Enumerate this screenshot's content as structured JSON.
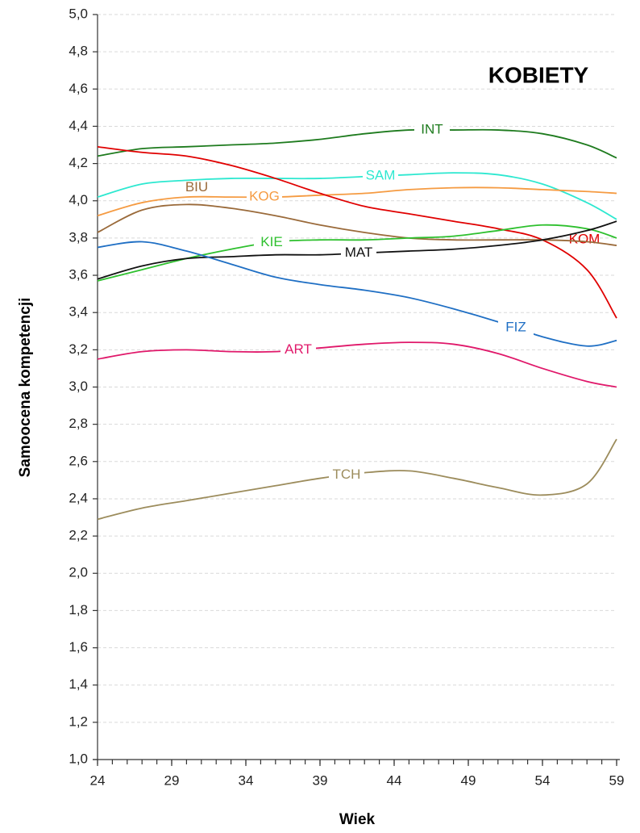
{
  "chart_data": {
    "type": "line",
    "annotation": "KOBIETY",
    "xlabel": "Wiek",
    "ylabel": "Samoocena kompetencji",
    "x": [
      24,
      27,
      30,
      33,
      36,
      39,
      42,
      45,
      48,
      51,
      54,
      57,
      59
    ],
    "xlim": [
      24,
      59
    ],
    "xticks": [
      24,
      29,
      34,
      39,
      44,
      49,
      54,
      59
    ],
    "x_minor_step": 1,
    "ylim": [
      1,
      5
    ],
    "yticks": [
      {
        "value": 1,
        "label": "1,0"
      },
      {
        "value": 1.2,
        "label": "1,2"
      },
      {
        "value": 1.4,
        "label": "1,4"
      },
      {
        "value": 1.6,
        "label": "1,6"
      },
      {
        "value": 1.8,
        "label": "1,8"
      },
      {
        "value": 2,
        "label": "2,0"
      },
      {
        "value": 2.2,
        "label": "2,2"
      },
      {
        "value": 2.4,
        "label": "2,4"
      },
      {
        "value": 2.6,
        "label": "2,6"
      },
      {
        "value": 2.8,
        "label": "2,8"
      },
      {
        "value": 3,
        "label": "3,0"
      },
      {
        "value": 3.2,
        "label": "3,2"
      },
      {
        "value": 3.4,
        "label": "3,4"
      },
      {
        "value": 3.6,
        "label": "3,6"
      },
      {
        "value": 3.8,
        "label": "3,8"
      },
      {
        "value": 4,
        "label": "4,0"
      },
      {
        "value": 4.2,
        "label": "4,2"
      },
      {
        "value": 4.4,
        "label": "4,4"
      },
      {
        "value": 4.6,
        "label": "4,6"
      },
      {
        "value": 4.8,
        "label": "4,8"
      },
      {
        "value": 5,
        "label": "5,0"
      }
    ],
    "grid": true,
    "series": [
      {
        "name": "INT",
        "color": "#1e7b1e",
        "values": [
          4.24,
          4.28,
          4.29,
          4.3,
          4.31,
          4.33,
          4.36,
          4.38,
          4.38,
          4.38,
          4.36,
          4.3,
          4.23
        ]
      },
      {
        "name": "SAM",
        "color": "#2de8d0",
        "values": [
          4.02,
          4.09,
          4.11,
          4.12,
          4.12,
          4.12,
          4.13,
          4.14,
          4.15,
          4.14,
          4.09,
          3.99,
          3.9
        ]
      },
      {
        "name": "KOG",
        "color": "#f59b42",
        "values": [
          3.92,
          3.99,
          4.02,
          4.02,
          4.02,
          4.03,
          4.04,
          4.06,
          4.07,
          4.07,
          4.06,
          4.05,
          4.04
        ]
      },
      {
        "name": "KOM",
        "color": "#e00000",
        "values": [
          4.29,
          4.26,
          4.24,
          4.19,
          4.12,
          4.04,
          3.97,
          3.93,
          3.89,
          3.85,
          3.79,
          3.63,
          3.37
        ]
      },
      {
        "name": "BIU",
        "color": "#9a6a3a",
        "values": [
          3.83,
          3.95,
          3.98,
          3.96,
          3.92,
          3.87,
          3.83,
          3.8,
          3.79,
          3.79,
          3.79,
          3.78,
          3.76
        ]
      },
      {
        "name": "KIE",
        "color": "#2ec02e",
        "values": [
          3.57,
          3.63,
          3.69,
          3.74,
          3.78,
          3.79,
          3.79,
          3.8,
          3.81,
          3.84,
          3.87,
          3.85,
          3.8
        ]
      },
      {
        "name": "MAT",
        "color": "#111111",
        "values": [
          3.58,
          3.65,
          3.69,
          3.7,
          3.71,
          3.71,
          3.72,
          3.73,
          3.74,
          3.76,
          3.79,
          3.84,
          3.89
        ]
      },
      {
        "name": "FIZ",
        "color": "#1f6fc4",
        "values": [
          3.75,
          3.78,
          3.73,
          3.66,
          3.59,
          3.55,
          3.52,
          3.48,
          3.42,
          3.35,
          3.27,
          3.22,
          3.25
        ]
      },
      {
        "name": "ART",
        "color": "#e0186a",
        "values": [
          3.15,
          3.19,
          3.2,
          3.19,
          3.19,
          3.21,
          3.23,
          3.24,
          3.23,
          3.18,
          3.1,
          3.03,
          3.0
        ]
      },
      {
        "name": "TCH",
        "color": "#9c8c5c",
        "values": [
          2.29,
          2.35,
          2.39,
          2.43,
          2.47,
          2.51,
          2.54,
          2.55,
          2.51,
          2.46,
          2.42,
          2.48,
          2.72
        ]
      }
    ]
  }
}
